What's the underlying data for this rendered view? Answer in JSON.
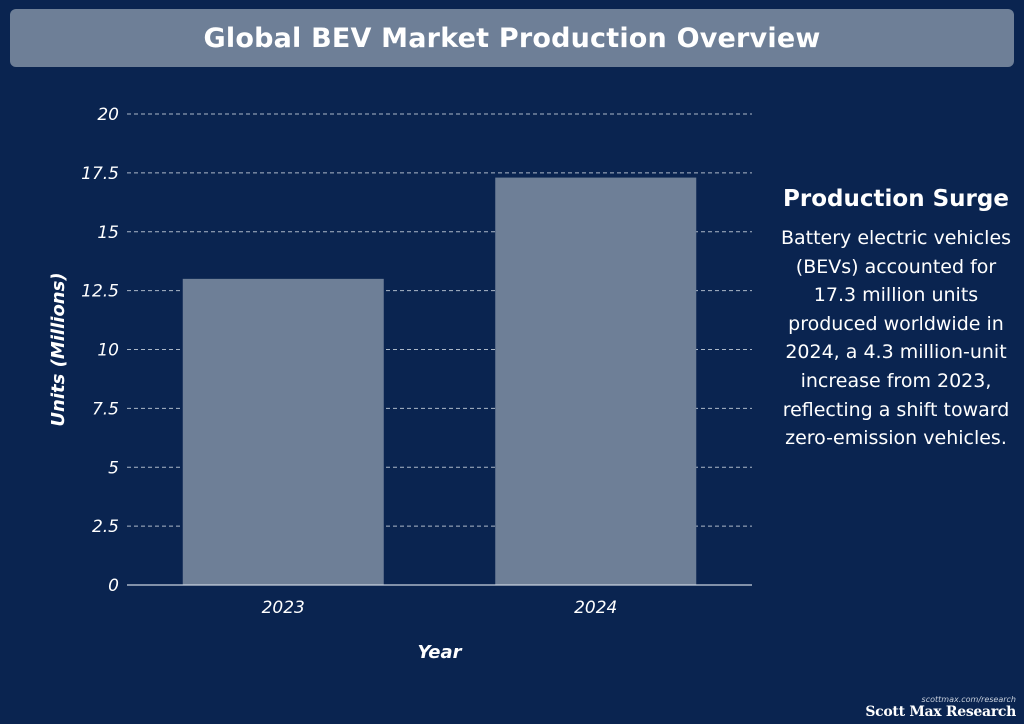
{
  "title": "Global BEV Market Production Overview",
  "sidebar": {
    "heading": "Production Surge",
    "body": "Battery electric vehicles (BEVs) accounted for 17.3 million units produced worldwide in 2024, a 4.3 million-unit increase from 2023, reflecting a shift toward zero-emission vehicles."
  },
  "footer": {
    "url": "scottmax.com/research",
    "brand": "Scott Max Research"
  },
  "colors": {
    "background": "#0a2450",
    "bar": "#6e7f97",
    "title_bar": "#6e7f97",
    "grid": "#c9d2de",
    "text": "#ffffff"
  },
  "chart_data": {
    "type": "bar",
    "title": "Global BEV Market Production Overview",
    "xlabel": "Year",
    "ylabel": "Units (Millions)",
    "categories": [
      "2023",
      "2024"
    ],
    "values": [
      13.0,
      17.3
    ],
    "ylim": [
      0,
      20
    ],
    "yticks": [
      0,
      2.5,
      5,
      7.5,
      10,
      12.5,
      15,
      17.5,
      20
    ],
    "ytick_labels": [
      "0",
      "2.5",
      "5",
      "7.5",
      "10",
      "12.5",
      "15",
      "17.5",
      "20"
    ],
    "grid": true,
    "grid_style": "dashed",
    "legend": "none"
  }
}
